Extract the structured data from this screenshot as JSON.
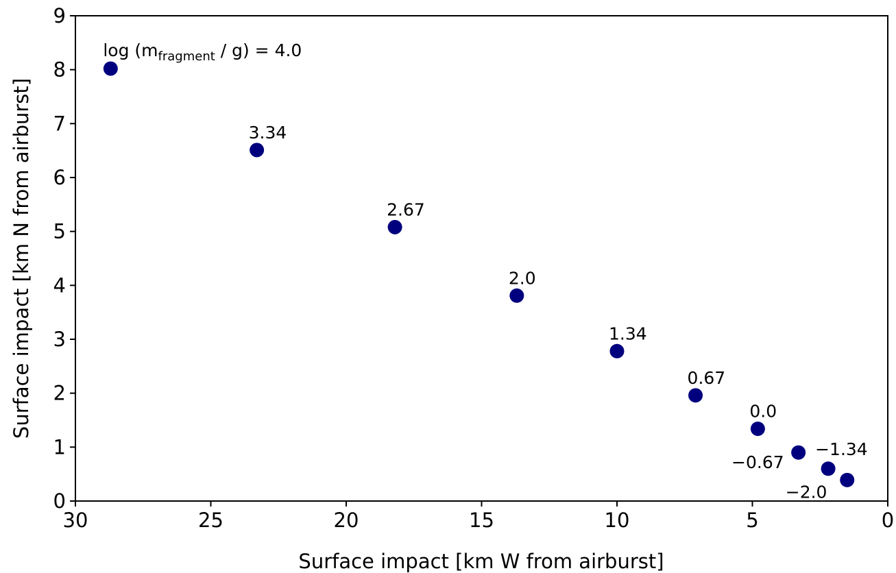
{
  "chart_data": {
    "type": "scatter",
    "title": "",
    "xlabel": "Surface impact [km W from airburst]",
    "ylabel": "Surface impact [km N from airburst]",
    "xlim": [
      30,
      0
    ],
    "ylim": [
      0,
      9
    ],
    "x_ticks": [
      "30",
      "25",
      "20",
      "15",
      "10",
      "5",
      "0"
    ],
    "y_ticks": [
      "0",
      "1",
      "2",
      "3",
      "4",
      "5",
      "6",
      "7",
      "8",
      "9"
    ],
    "grid": false,
    "legend": "none",
    "marker_color": "#00007f",
    "series": [
      {
        "points": [
          {
            "x": 28.7,
            "y": 8.02,
            "label": "4.0"
          },
          {
            "x": 23.3,
            "y": 6.51,
            "label": "3.34"
          },
          {
            "x": 18.2,
            "y": 5.08,
            "label": "2.67"
          },
          {
            "x": 13.7,
            "y": 3.81,
            "label": "2.0"
          },
          {
            "x": 10.0,
            "y": 2.78,
            "label": "1.34"
          },
          {
            "x": 7.1,
            "y": 1.96,
            "label": "0.67"
          },
          {
            "x": 4.8,
            "y": 1.34,
            "label": "0.0"
          },
          {
            "x": 3.3,
            "y": 0.9,
            "label": "−0.67"
          },
          {
            "x": 2.2,
            "y": 0.6,
            "label": "−1.34"
          },
          {
            "x": 1.5,
            "y": 0.39,
            "label": "−2.0"
          }
        ]
      }
    ],
    "first_label": {
      "prefix": "log (m",
      "subscript": "fragment",
      "suffix": " / g) = 4.0"
    }
  }
}
